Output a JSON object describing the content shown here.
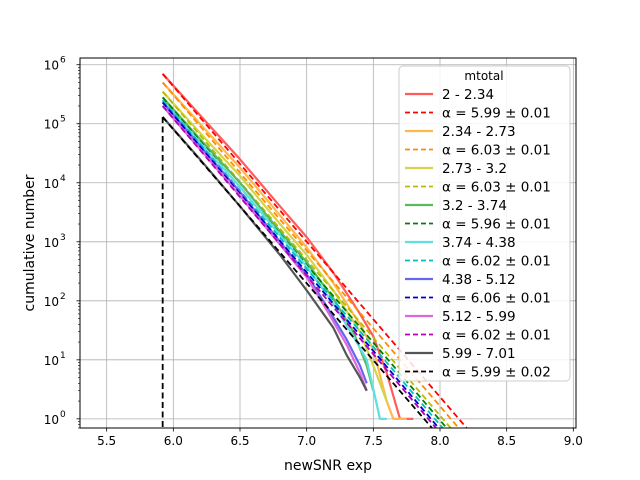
{
  "chart_data": {
    "type": "line",
    "xlabel": "newSNR exp",
    "ylabel": "cumulative number",
    "xlim": [
      5.3,
      9.02
    ],
    "ylim": [
      0.7,
      1300000
    ],
    "yscale": "log",
    "grid": true,
    "xticks": [
      "5.5",
      "6.0",
      "6.5",
      "7.0",
      "7.5",
      "8.0",
      "8.5",
      "9.0"
    ],
    "yticks": [
      {
        "value": 1,
        "base": "10",
        "exp": "0"
      },
      {
        "value": 10,
        "base": "10",
        "exp": "1"
      },
      {
        "value": 100,
        "base": "10",
        "exp": "2"
      },
      {
        "value": 1000,
        "base": "10",
        "exp": "3"
      },
      {
        "value": 10000,
        "base": "10",
        "exp": "4"
      },
      {
        "value": 100000,
        "base": "10",
        "exp": "5"
      },
      {
        "value": 1000000,
        "base": "10",
        "exp": "6"
      }
    ],
    "legend": {
      "title": "mtotal",
      "placement": "upper right"
    },
    "threshold_x": 5.92,
    "series": [
      {
        "name": "2 - 2.34",
        "fit_label": "α = 5.99 ± 0.01",
        "color": "#ff5c5c",
        "fit_color": "#ff0000",
        "start_y": 700000,
        "fit_end": [
          8.2,
          0.7
        ],
        "data": [
          [
            5.92,
            700000
          ],
          [
            6.2,
            140000
          ],
          [
            6.5,
            25000
          ],
          [
            6.8,
            4000
          ],
          [
            7.0,
            1200
          ],
          [
            7.2,
            300
          ],
          [
            7.4,
            60
          ],
          [
            7.5,
            25
          ],
          [
            7.6,
            6
          ],
          [
            7.7,
            1
          ],
          [
            7.8,
            1
          ]
        ]
      },
      {
        "name": "2.34 - 2.73",
        "fit_label": "α = 6.03 ± 0.01",
        "color": "#ffb84d",
        "fit_color": "#ff8c00",
        "start_y": 500000,
        "fit_end": [
          8.14,
          0.7
        ],
        "data": [
          [
            5.92,
            500000
          ],
          [
            6.2,
            100000
          ],
          [
            6.5,
            18000
          ],
          [
            6.8,
            2800
          ],
          [
            7.0,
            800
          ],
          [
            7.2,
            200
          ],
          [
            7.4,
            40
          ],
          [
            7.5,
            15
          ],
          [
            7.6,
            2
          ],
          [
            7.65,
            1
          ],
          [
            7.75,
            1
          ]
        ]
      },
      {
        "name": "2.73 - 3.2",
        "fit_label": "α = 6.03 ± 0.01",
        "color": "#d4d44a",
        "fit_color": "#bbbb00",
        "start_y": 350000,
        "fit_end": [
          8.08,
          0.7
        ],
        "data": [
          [
            5.92,
            350000
          ],
          [
            6.2,
            70000
          ],
          [
            6.5,
            13000
          ],
          [
            6.8,
            2000
          ],
          [
            7.0,
            600
          ],
          [
            7.2,
            150
          ],
          [
            7.4,
            30
          ],
          [
            7.5,
            8
          ],
          [
            7.6,
            2
          ]
        ]
      },
      {
        "name": "3.2 - 3.74",
        "fit_label": "α = 5.96 ± 0.01",
        "color": "#5cb85c",
        "fit_color": "#008000",
        "start_y": 280000,
        "fit_end": [
          8.05,
          0.7
        ],
        "data": [
          [
            5.92,
            280000
          ],
          [
            6.2,
            55000
          ],
          [
            6.5,
            10000
          ],
          [
            6.8,
            1500
          ],
          [
            7.0,
            450
          ],
          [
            7.2,
            110
          ],
          [
            7.35,
            30
          ],
          [
            7.45,
            8
          ],
          [
            7.5,
            3
          ]
        ]
      },
      {
        "name": "3.74 - 4.38",
        "fit_label": "α = 6.02 ± 0.01",
        "color": "#5ce0e0",
        "fit_color": "#00bfbf",
        "start_y": 250000,
        "fit_end": [
          8.02,
          0.7
        ],
        "data": [
          [
            5.92,
            250000
          ],
          [
            6.2,
            48000
          ],
          [
            6.5,
            8500
          ],
          [
            6.8,
            1300
          ],
          [
            7.0,
            380
          ],
          [
            7.2,
            90
          ],
          [
            7.35,
            25
          ],
          [
            7.45,
            10
          ],
          [
            7.55,
            1
          ],
          [
            7.6,
            1
          ]
        ]
      },
      {
        "name": "4.38 - 5.12",
        "fit_label": "α = 6.06 ± 0.01",
        "color": "#6666ee",
        "fit_color": "#0000cc",
        "start_y": 230000,
        "fit_end": [
          7.99,
          0.7
        ],
        "data": [
          [
            5.92,
            230000
          ],
          [
            6.2,
            42000
          ],
          [
            6.5,
            7000
          ],
          [
            6.8,
            1000
          ],
          [
            7.0,
            280
          ],
          [
            7.15,
            80
          ],
          [
            7.3,
            22
          ],
          [
            7.4,
            8
          ],
          [
            7.45,
            4
          ]
        ]
      },
      {
        "name": "5.12 - 5.99",
        "fit_label": "α = 6.02 ± 0.01",
        "color": "#e066e0",
        "fit_color": "#b300b3",
        "start_y": 200000,
        "fit_end": [
          7.97,
          0.7
        ],
        "data": [
          [
            5.92,
            200000
          ],
          [
            6.2,
            37000
          ],
          [
            6.5,
            6000
          ],
          [
            6.8,
            900
          ],
          [
            7.0,
            250
          ],
          [
            7.15,
            70
          ],
          [
            7.3,
            18
          ],
          [
            7.4,
            6
          ],
          [
            7.45,
            3
          ]
        ]
      },
      {
        "name": "5.99 - 7.01",
        "fit_label": "α = 5.99 ± 0.02",
        "color": "#555555",
        "fit_color": "#000000",
        "start_y": 130000,
        "fit_end": [
          7.94,
          0.7
        ],
        "data": [
          [
            5.92,
            130000
          ],
          [
            6.2,
            25000
          ],
          [
            6.5,
            4000
          ],
          [
            6.8,
            600
          ],
          [
            7.0,
            150
          ],
          [
            7.2,
            35
          ],
          [
            7.3,
            12
          ],
          [
            7.4,
            5
          ],
          [
            7.45,
            3
          ]
        ]
      }
    ]
  }
}
